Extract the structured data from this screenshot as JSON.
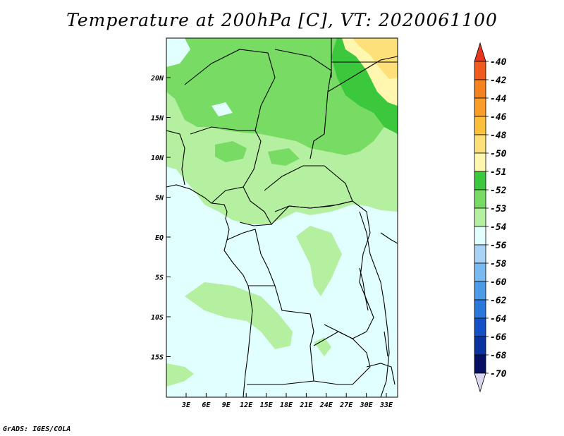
{
  "title": "Temperature at 200hPa [C], VT: 2020061100",
  "credit": "GrADS: IGES/COLA",
  "axes": {
    "lon_ticks": [
      "3E",
      "6E",
      "9E",
      "12E",
      "15E",
      "18E",
      "21E",
      "24E",
      "27E",
      "30E",
      "33E"
    ],
    "lat_ticks": [
      "20N",
      "15N",
      "10N",
      "5N",
      "EQ",
      "5S",
      "10S",
      "15S"
    ]
  },
  "colorbar": {
    "levels": [
      "-40",
      "-42",
      "-44",
      "-46",
      "-48",
      "-50",
      "-51",
      "-52",
      "-53",
      "-54",
      "-56",
      "-58",
      "-60",
      "-62",
      "-64",
      "-66",
      "-68",
      "-70"
    ],
    "colors": [
      "#e6361e",
      "#f05a1e",
      "#f5821e",
      "#fa9c28",
      "#fbbf3c",
      "#fde07a",
      "#fff7b0",
      "#3cc83c",
      "#78dc64",
      "#b4f0a0",
      "#e1ffff",
      "#a9d3f6",
      "#78b9f0",
      "#4b9be6",
      "#2a78dc",
      "#1450c8",
      "#0a32a0",
      "#050f64",
      "#dcd7f0"
    ]
  },
  "legend": {
    "domain_colors": {
      "cold_-54_-56": "#e1ffff",
      "band_-53_-54": "#b4f0a0",
      "band_-52_-53": "#78dc64",
      "band_-51_-52": "#3cc83c",
      "band_-50_-51": "#fff7b0",
      "band_-48_-50": "#fde07a"
    }
  }
}
